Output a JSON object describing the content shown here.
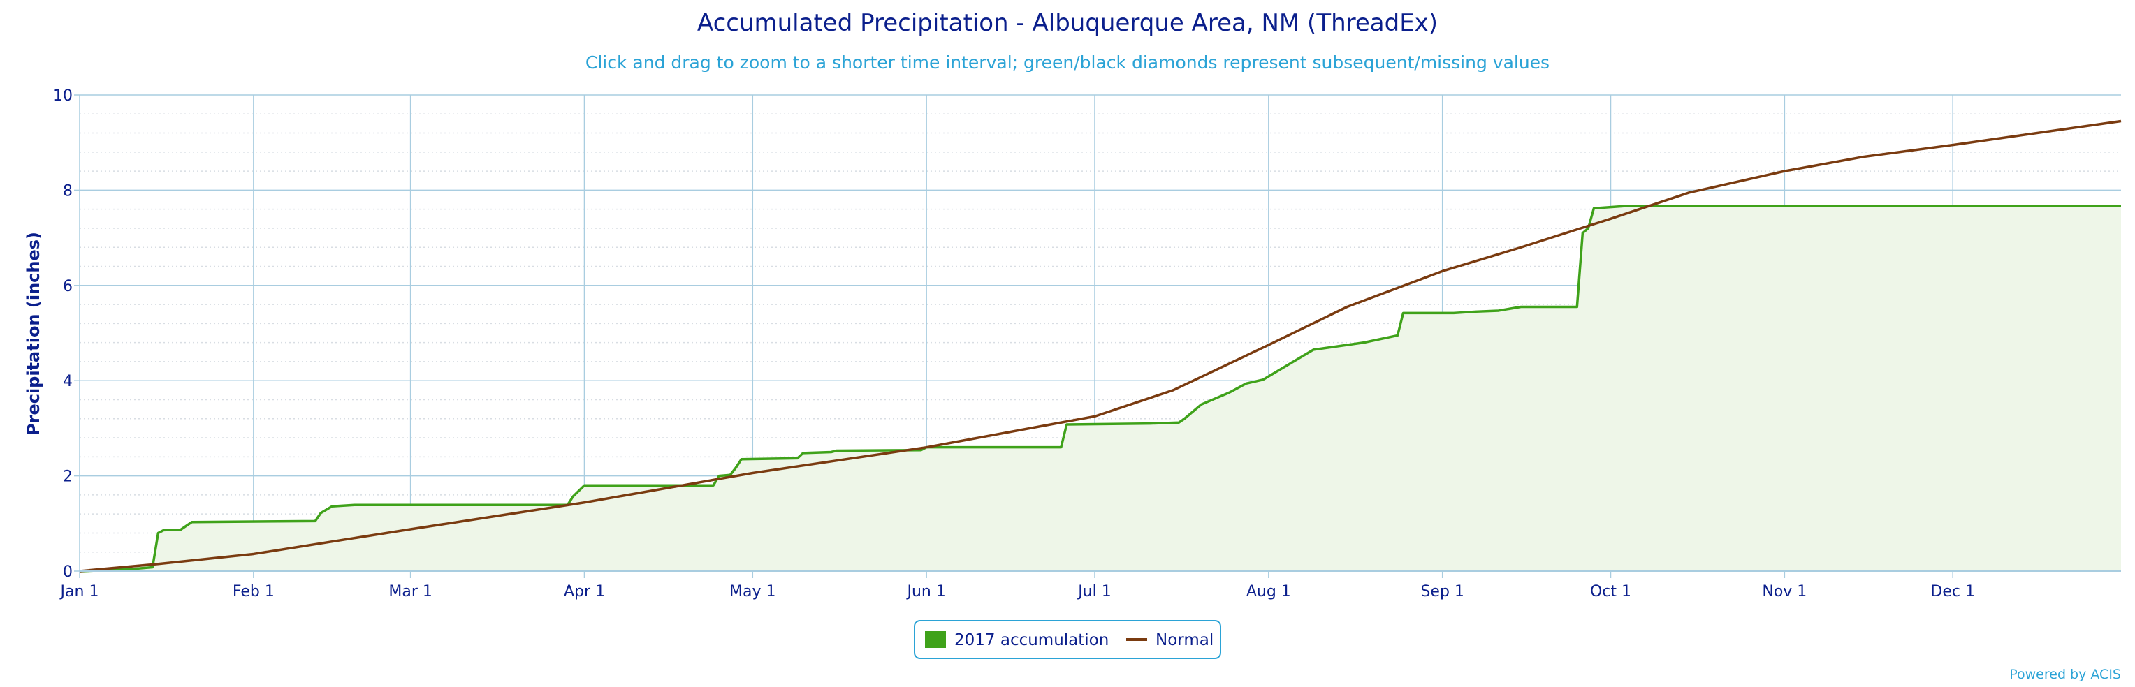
{
  "colors": {
    "accumulation": "#3fa21a",
    "accumulation_fill": "#eef6e8",
    "normal": "#7a3b10",
    "grid_major": "#a9cde0",
    "grid_minor": "#d8dde3",
    "axis_text": "#0b1f8c",
    "subtitle": "#2ba3d6"
  },
  "chart_data": {
    "type": "area",
    "title": "Accumulated Precipitation - Albuquerque Area, NM (ThreadEx)",
    "subtitle": "Click and drag to zoom to a shorter time interval; green/black diamonds represent subsequent/missing values",
    "xlabel": "",
    "ylabel": "Precipitation (inches)",
    "ylim": [
      0,
      10
    ],
    "yticks": [
      0,
      2,
      4,
      6,
      8,
      10
    ],
    "xlim": [
      "Jan 1",
      "Dec 31"
    ],
    "xtick_labels": [
      "Jan 1",
      "Feb 1",
      "Mar 1",
      "Apr 1",
      "May 1",
      "Jun 1",
      "Jul 1",
      "Aug 1",
      "Sep 1",
      "Oct 1",
      "Nov 1",
      "Dec 1"
    ],
    "grid": true,
    "legend_position": "bottom-center",
    "credit": "Powered by ACIS",
    "series": [
      {
        "name": "2017 accumulation",
        "kind": "step-area",
        "points": [
          [
            "Jan 1",
            0.0
          ],
          [
            "Jan 10",
            0.04
          ],
          [
            "Jan 14",
            0.08
          ],
          [
            "Jan 15",
            0.8
          ],
          [
            "Jan 16",
            0.86
          ],
          [
            "Jan 19",
            0.87
          ],
          [
            "Jan 21",
            1.03
          ],
          [
            "Feb 12",
            1.05
          ],
          [
            "Feb 13",
            1.22
          ],
          [
            "Feb 15",
            1.36
          ],
          [
            "Feb 19",
            1.39
          ],
          [
            "Mar 29",
            1.39
          ],
          [
            "Mar 30",
            1.57
          ],
          [
            "Apr 1",
            1.8
          ],
          [
            "Apr 24",
            1.8
          ],
          [
            "Apr 25",
            2.0
          ],
          [
            "Apr 27",
            2.02
          ],
          [
            "Apr 28",
            2.17
          ],
          [
            "Apr 29",
            2.35
          ],
          [
            "May 9",
            2.37
          ],
          [
            "May 10",
            2.48
          ],
          [
            "May 15",
            2.5
          ],
          [
            "May 16",
            2.53
          ],
          [
            "May 31",
            2.54
          ],
          [
            "Jun 1",
            2.6
          ],
          [
            "Jun 25",
            2.6
          ],
          [
            "Jun 26",
            3.08
          ],
          [
            "Jul 11",
            3.1
          ],
          [
            "Jul 16",
            3.12
          ],
          [
            "Jul 17",
            3.2
          ],
          [
            "Jul 20",
            3.5
          ],
          [
            "Jul 25",
            3.75
          ],
          [
            "Jul 28",
            3.94
          ],
          [
            "Jul 31",
            4.02
          ],
          [
            "Aug 9",
            4.65
          ],
          [
            "Aug 12",
            4.7
          ],
          [
            "Aug 18",
            4.8
          ],
          [
            "Aug 24",
            4.95
          ],
          [
            "Aug 25",
            5.42
          ],
          [
            "Sep 3",
            5.42
          ],
          [
            "Sep 7",
            5.45
          ],
          [
            "Sep 11",
            5.47
          ],
          [
            "Sep 15",
            5.55
          ],
          [
            "Sep 25",
            5.55
          ],
          [
            "Sep 26",
            7.1
          ],
          [
            "Sep 27",
            7.2
          ],
          [
            "Sep 28",
            7.62
          ],
          [
            "Oct 4",
            7.67
          ],
          [
            "Dec 31",
            7.67
          ]
        ]
      },
      {
        "name": "Normal",
        "kind": "line",
        "points": [
          [
            "Jan 1",
            0.0
          ],
          [
            "Jan 15",
            0.15
          ],
          [
            "Feb 1",
            0.36
          ],
          [
            "Mar 1",
            0.88
          ],
          [
            "Apr 1",
            1.44
          ],
          [
            "May 1",
            2.06
          ],
          [
            "Jun 1",
            2.6
          ],
          [
            "Jul 1",
            3.25
          ],
          [
            "Jul 15",
            3.8
          ],
          [
            "Aug 1",
            4.75
          ],
          [
            "Aug 15",
            5.55
          ],
          [
            "Sep 1",
            6.3
          ],
          [
            "Sep 15",
            6.8
          ],
          [
            "Oct 1",
            7.4
          ],
          [
            "Oct 15",
            7.95
          ],
          [
            "Nov 1",
            8.4
          ],
          [
            "Nov 15",
            8.7
          ],
          [
            "Dec 1",
            8.95
          ],
          [
            "Dec 31",
            9.45
          ]
        ]
      }
    ]
  }
}
